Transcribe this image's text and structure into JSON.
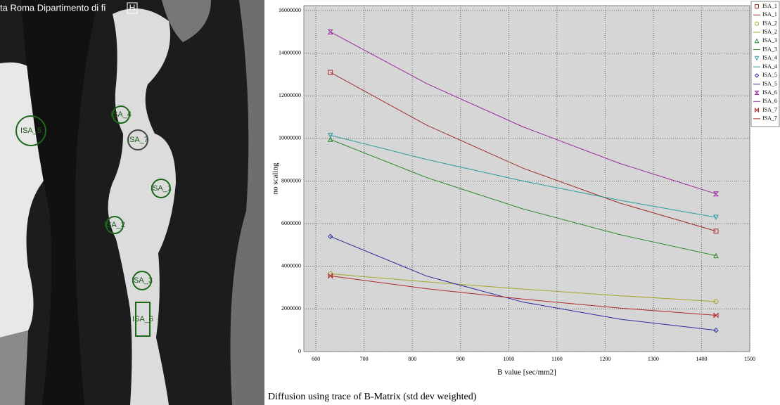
{
  "image": {
    "header": "ta Roma Dipartimento di fi",
    "button": "H",
    "rois": [
      "ISA_4",
      "ISA_7",
      "ISA_5",
      "ISA_1",
      "ISA_2",
      "ISA_3",
      "ISA_6"
    ]
  },
  "chart_data": {
    "type": "line",
    "xlabel": "B value [sec/mm2]",
    "ylabel": "no scaling",
    "caption": "Diffusion using trace of B-Matrix (std dev weighted)",
    "xlim": [
      575,
      1500
    ],
    "xticks": [
      600,
      700,
      800,
      900,
      1000,
      1100,
      1200,
      1300,
      1400,
      1500
    ],
    "ylim": [
      0,
      16000000
    ],
    "yticks": [
      0,
      2000000,
      4000000,
      6000000,
      8000000,
      10000000,
      12000000,
      14000000,
      16000000
    ],
    "grid": true,
    "legend": "right",
    "series": [
      {
        "name": "ISA_1",
        "color": "#a0302a",
        "marker": "square",
        "x": [
          630,
          1430
        ],
        "values": [
          13100000,
          5650000
        ]
      },
      {
        "name": "ISA_1",
        "color": "#a0302a",
        "x": [
          630,
          830,
          1030,
          1230,
          1430
        ],
        "values": [
          13100000,
          10620000,
          8600000,
          6970000,
          5650000
        ]
      },
      {
        "name": "ISA_2",
        "color": "#a6a62a",
        "marker": "circle",
        "x": [
          630,
          1430
        ],
        "values": [
          3650000,
          2350000
        ]
      },
      {
        "name": "ISA_2",
        "color": "#a6a62a",
        "x": [
          630,
          830,
          1030,
          1230,
          1430
        ],
        "values": [
          3650000,
          3270000,
          2930000,
          2620000,
          2350000
        ]
      },
      {
        "name": "ISA_3",
        "color": "#2e8b2e",
        "marker": "triangle",
        "x": [
          630,
          1430
        ],
        "values": [
          9950000,
          4500000
        ]
      },
      {
        "name": "ISA_3",
        "color": "#2e8b2e",
        "x": [
          630,
          830,
          1030,
          1230,
          1430
        ],
        "values": [
          9950000,
          8160000,
          6690000,
          5490000,
          4500000
        ]
      },
      {
        "name": "ISA_4",
        "color": "#2a9a9a",
        "marker": "down-triangle",
        "x": [
          630,
          1430
        ],
        "values": [
          10150000,
          6300000
        ]
      },
      {
        "name": "ISA_4",
        "color": "#2a9a9a",
        "x": [
          630,
          830,
          1030,
          1230,
          1430
        ],
        "values": [
          10150000,
          9010000,
          8000000,
          7100000,
          6300000
        ]
      },
      {
        "name": "ISA_5",
        "color": "#2a2a9c",
        "marker": "diamond",
        "x": [
          630,
          1430
        ],
        "values": [
          5400000,
          1000000
        ]
      },
      {
        "name": "ISA_5",
        "color": "#2a2a9c",
        "x": [
          630,
          830,
          1030,
          1230,
          1430
        ],
        "values": [
          5400000,
          3540000,
          2320000,
          1520000,
          1000000
        ]
      },
      {
        "name": "ISA_6",
        "color": "#9a2a9a",
        "marker": "hourglass",
        "x": [
          630,
          1430
        ],
        "values": [
          15000000,
          7400000
        ]
      },
      {
        "name": "ISA_6",
        "color": "#9a2a9a",
        "x": [
          630,
          830,
          1030,
          1230,
          1430
        ],
        "values": [
          15000000,
          12570000,
          10540000,
          8830000,
          7400000
        ]
      },
      {
        "name": "ISA_7",
        "color": "#b02a2a",
        "marker": "bowtie",
        "x": [
          630,
          1430
        ],
        "values": [
          3550000,
          1700000
        ]
      },
      {
        "name": "ISA_7",
        "color": "#b02a2a",
        "x": [
          630,
          830,
          1030,
          1230,
          1430
        ],
        "values": [
          3550000,
          2950000,
          2460000,
          2040000,
          1700000
        ]
      }
    ]
  }
}
